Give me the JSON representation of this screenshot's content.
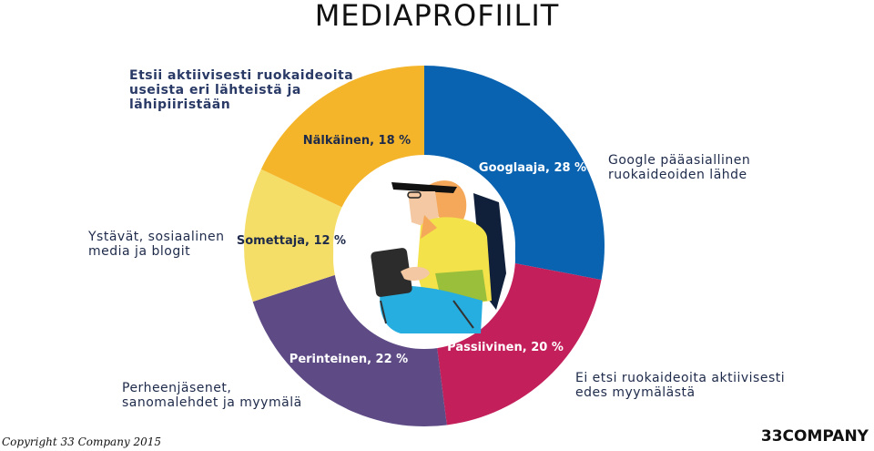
{
  "title": "MEDIAPROFIILIT",
  "notes": {
    "top_left": [
      "Etsii aktiivisesti ruokaideoita",
      "useista eri lähteistä ja",
      "lähipiiristään"
    ],
    "top_right": [
      "Google pääasiallinen",
      "ruokaideoiden lähde"
    ],
    "mid_left": [
      "Ystävät, sosiaalinen",
      "media ja blogit"
    ],
    "bottom_left": [
      "Perheenjäsenet,",
      "sanomalehdet ja myymälä"
    ],
    "bottom_right": [
      "Ei etsi ruokaideoita aktiivisesti",
      "edes myymälästä"
    ]
  },
  "footer": {
    "copyright": "Copyright 33 Company 2015",
    "logo": "33COMPANY"
  },
  "chart_data": {
    "type": "pie",
    "variant": "donut",
    "title": "MEDIAPROFIILIT",
    "unit": "%",
    "slices": [
      {
        "label": "Googlaaja, 28 %",
        "name": "Googlaaja",
        "value": 28,
        "color": "#0a63b0",
        "label_color": "#ffffff"
      },
      {
        "label": "Passiivinen, 20 %",
        "name": "Passiivinen",
        "value": 20,
        "color": "#c31f5a",
        "label_color": "#ffffff"
      },
      {
        "label": "Perinteinen, 22 %",
        "name": "Perinteinen",
        "value": 22,
        "color": "#5e4b86",
        "label_color": "#ffffff"
      },
      {
        "label": "Somettaja, 12 %",
        "name": "Somettaja",
        "value": 12,
        "color": "#f4de68",
        "label_color": "#1e2a4a"
      },
      {
        "label": "Nälkäinen, 18 %",
        "name": "Nälkäinen",
        "value": 18,
        "color": "#f5b52a",
        "label_color": "#1e2a4a"
      }
    ],
    "start_angle_deg": 0,
    "direction": "clockwise",
    "legend": "none"
  }
}
